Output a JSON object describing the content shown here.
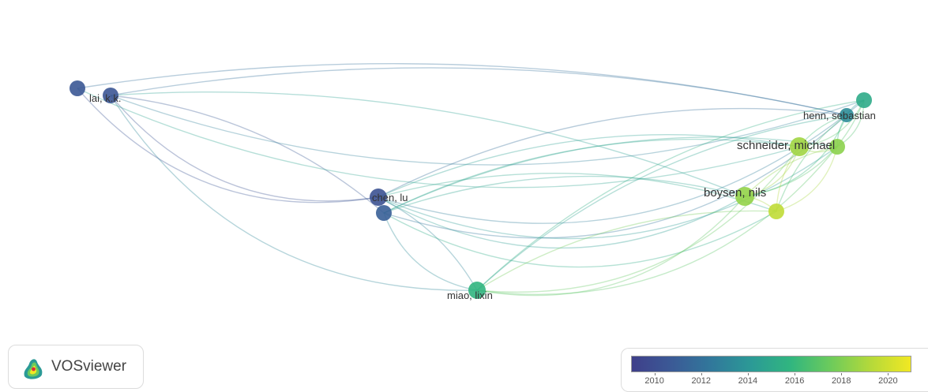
{
  "network": {
    "nodes": [
      {
        "id": "n_lai_a",
        "label": "",
        "year": 2010.6
      },
      {
        "id": "n_lai",
        "label": "lai, k.k.",
        "year": 2010.5
      },
      {
        "id": "n_chen",
        "label": "chen, lu",
        "year": 2010.2
      },
      {
        "id": "n_chen_b",
        "label": "",
        "year": 2011.0
      },
      {
        "id": "n_miao",
        "label": "miao, lixin",
        "year": 2015.8
      },
      {
        "id": "n_boysen",
        "label": "boysen, nils",
        "year": 2018.5
      },
      {
        "id": "n_b2",
        "label": "",
        "year": 2019.6
      },
      {
        "id": "n_schneider",
        "label": "schneider, michael",
        "year": 2018.8
      },
      {
        "id": "n_s2",
        "label": "",
        "year": 2018.3
      },
      {
        "id": "n_henn",
        "label": "henn, sebastian",
        "year": 2013.5
      },
      {
        "id": "n_h2",
        "label": "",
        "year": 2015.2
      }
    ],
    "links": [
      [
        "n_lai",
        "n_chen"
      ],
      [
        "n_lai",
        "n_chen_b"
      ],
      [
        "n_lai",
        "n_miao"
      ],
      [
        "n_lai",
        "n_henn"
      ],
      [
        "n_lai",
        "n_h2"
      ],
      [
        "n_lai",
        "n_boysen"
      ],
      [
        "n_lai_a",
        "n_chen"
      ],
      [
        "n_lai_a",
        "n_henn"
      ],
      [
        "n_lai_a",
        "n_schneider"
      ],
      [
        "n_chen",
        "n_henn"
      ],
      [
        "n_chen",
        "n_h2"
      ],
      [
        "n_chen",
        "n_schneider"
      ],
      [
        "n_chen",
        "n_boysen"
      ],
      [
        "n_chen",
        "n_b2"
      ],
      [
        "n_chen",
        "n_s2"
      ],
      [
        "n_chen",
        "n_miao"
      ],
      [
        "n_chen_b",
        "n_henn"
      ],
      [
        "n_chen_b",
        "n_boysen"
      ],
      [
        "n_chen_b",
        "n_b2"
      ],
      [
        "n_chen_b",
        "n_schneider"
      ],
      [
        "n_chen_b",
        "n_miao"
      ],
      [
        "n_chen_b",
        "n_s2"
      ],
      [
        "n_miao",
        "n_boysen"
      ],
      [
        "n_miao",
        "n_b2"
      ],
      [
        "n_miao",
        "n_schneider"
      ],
      [
        "n_miao",
        "n_henn"
      ],
      [
        "n_miao",
        "n_s2"
      ],
      [
        "n_miao",
        "n_h2"
      ],
      [
        "n_boysen",
        "n_schneider"
      ],
      [
        "n_boysen",
        "n_s2"
      ],
      [
        "n_boysen",
        "n_henn"
      ],
      [
        "n_boysen",
        "n_b2"
      ],
      [
        "n_boysen",
        "n_h2"
      ],
      [
        "n_b2",
        "n_schneider"
      ],
      [
        "n_b2",
        "n_s2"
      ],
      [
        "n_b2",
        "n_henn"
      ],
      [
        "n_schneider",
        "n_s2"
      ],
      [
        "n_schneider",
        "n_henn"
      ],
      [
        "n_schneider",
        "n_h2"
      ],
      [
        "n_s2",
        "n_henn"
      ],
      [
        "n_s2",
        "n_h2"
      ],
      [
        "n_henn",
        "n_h2"
      ]
    ]
  },
  "branding": {
    "logo_icon": "vosviewer-logo-icon",
    "name": "VOSviewer"
  },
  "color_scale": {
    "min_year": 2009,
    "max_year": 2021,
    "stops": [
      "#3f3f8a",
      "#3b5a96",
      "#31789b",
      "#2b9a96",
      "#31b67f",
      "#6dcb5b",
      "#b5d93a",
      "#f1e823"
    ],
    "tick_labels": [
      "2010",
      "2012",
      "2014",
      "2016",
      "2018",
      "2020"
    ]
  }
}
